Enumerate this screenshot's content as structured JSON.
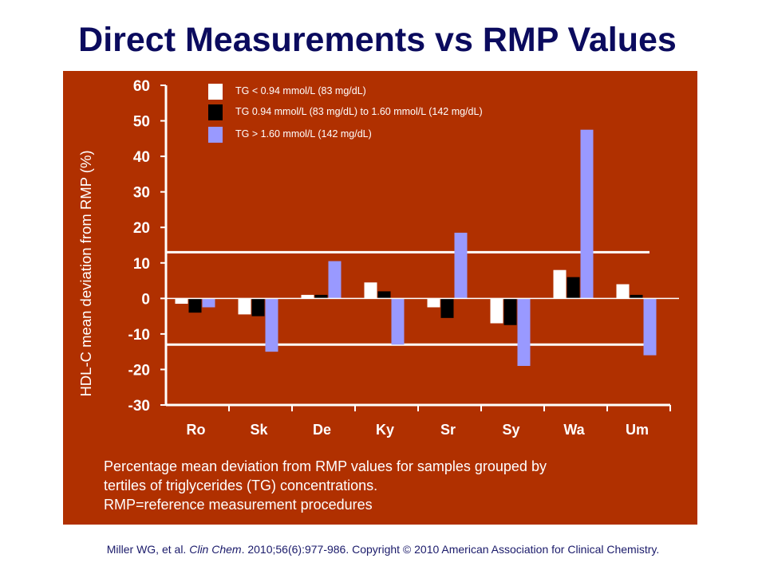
{
  "slide": {
    "title": "Direct Measurements vs RMP Values"
  },
  "caption": {
    "line1": "Percentage mean deviation from RMP values for samples grouped by",
    "line2": "tertiles of triglycerides (TG) concentrations.",
    "line3": "RMP=reference measurement procedures"
  },
  "citation": {
    "authors": "Miller WG, et al. ",
    "journal": "Clin Chem",
    "details": ". 2010;56(6):977-986. Copyright © 2010 American Association for Clinical Chemistry."
  },
  "colors": {
    "panel_background": "#b03000",
    "title": "#0b0b5e",
    "series_low": "#ffffff",
    "series_mid": "#000000",
    "series_high": "#9999ff",
    "axis": "#ffffff"
  },
  "chart_data": {
    "type": "bar",
    "title": "",
    "xlabel": "",
    "ylabel": "HDL-C mean deviation from RMP (%)",
    "ylim": [
      -30,
      60
    ],
    "yticks": [
      60,
      50,
      40,
      30,
      20,
      10,
      0,
      -10,
      -20,
      -30
    ],
    "grid": false,
    "legend_position": "top",
    "reference_lines": [
      13,
      -13
    ],
    "categories": [
      "Ro",
      "Sk",
      "De",
      "Ky",
      "Sr",
      "Sy",
      "Wa",
      "Um"
    ],
    "series": [
      {
        "name": "TG < 0.94 mmol/L (83 mg/dL)",
        "color": "#ffffff",
        "values": [
          -1.5,
          -4.5,
          1,
          4.5,
          -2.5,
          -7,
          8,
          4
        ]
      },
      {
        "name": "TG 0.94 mmol/L (83 mg/dL) to 1.60 mmol/L (142 mg/dL)",
        "color": "#000000",
        "values": [
          -4,
          -5,
          1,
          2,
          -5.5,
          -7.5,
          6,
          1
        ]
      },
      {
        "name": "TG > 1.60 mmol/L (142 mg/dL)",
        "color": "#9999ff",
        "values": [
          -2.5,
          -15,
          10.5,
          -13,
          18.5,
          -19,
          47.5,
          -16
        ]
      }
    ]
  }
}
